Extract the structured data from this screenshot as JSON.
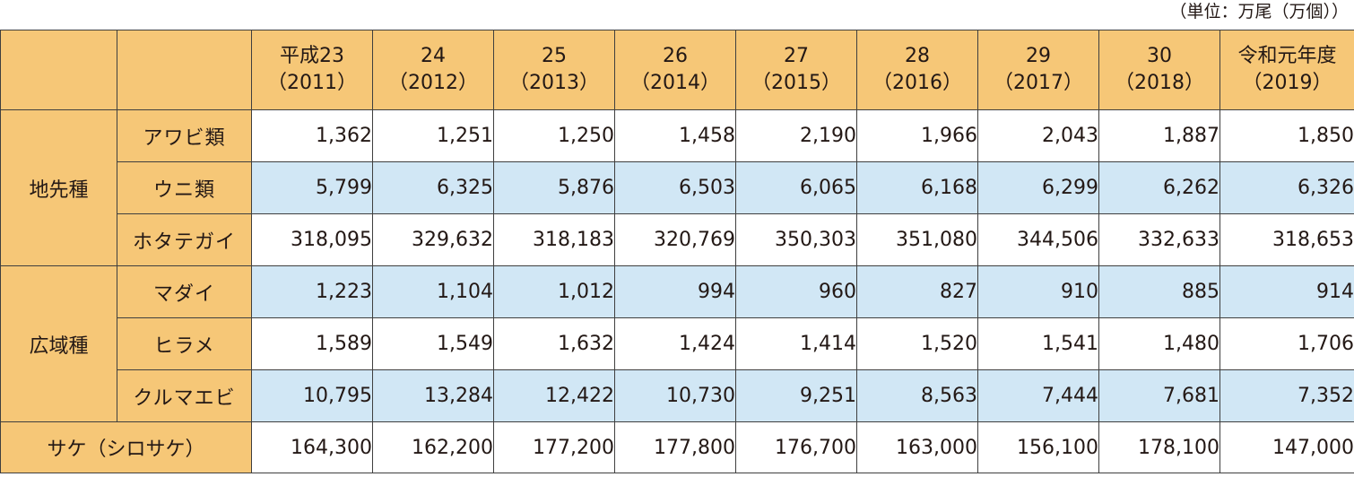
{
  "unit_note": "（単位：万尾（万個））",
  "header": {
    "years": [
      {
        "line1": "平成23",
        "line2": "（2011）"
      },
      {
        "line1": "24",
        "line2": "（2012）"
      },
      {
        "line1": "25",
        "line2": "（2013）"
      },
      {
        "line1": "26",
        "line2": "（2014）"
      },
      {
        "line1": "27",
        "line2": "（2015）"
      },
      {
        "line1": "28",
        "line2": "（2016）"
      },
      {
        "line1": "29",
        "line2": "（2017）"
      },
      {
        "line1": "30",
        "line2": "（2018）"
      },
      {
        "line1": "令和元年度",
        "line2": "（2019）"
      }
    ]
  },
  "groups": {
    "local": "地先種",
    "wide": "広域種"
  },
  "rows": [
    {
      "label": "アワビ類",
      "values": [
        "1,362",
        "1,251",
        "1,250",
        "1,458",
        "2,190",
        "1,966",
        "2,043",
        "1,887",
        "1,850"
      ]
    },
    {
      "label": "ウニ類",
      "values": [
        "5,799",
        "6,325",
        "5,876",
        "6,503",
        "6,065",
        "6,168",
        "6,299",
        "6,262",
        "6,326"
      ]
    },
    {
      "label": "ホタテガイ",
      "values": [
        "318,095",
        "329,632",
        "318,183",
        "320,769",
        "350,303",
        "351,080",
        "344,506",
        "332,633",
        "318,653"
      ]
    },
    {
      "label": "マダイ",
      "values": [
        "1,223",
        "1,104",
        "1,012",
        "994",
        "960",
        "827",
        "910",
        "885",
        "914"
      ]
    },
    {
      "label": "ヒラメ",
      "values": [
        "1,589",
        "1,549",
        "1,632",
        "1,424",
        "1,414",
        "1,520",
        "1,541",
        "1,480",
        "1,706"
      ]
    },
    {
      "label": "クルマエビ",
      "values": [
        "10,795",
        "13,284",
        "12,422",
        "10,730",
        "9,251",
        "8,563",
        "7,444",
        "7,681",
        "7,352"
      ]
    },
    {
      "label": "サケ（シロサケ）",
      "values": [
        "164,300",
        "162,200",
        "177,200",
        "177,800",
        "176,700",
        "163,000",
        "156,100",
        "178,100",
        "147,000"
      ]
    }
  ]
}
